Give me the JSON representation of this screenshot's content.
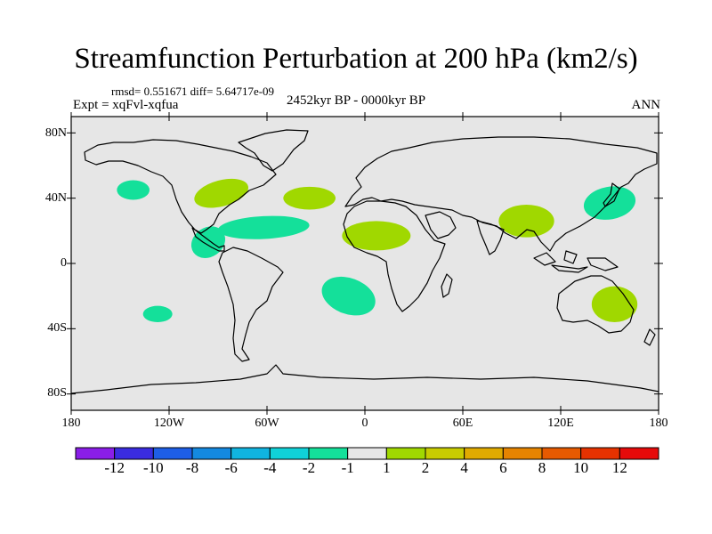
{
  "figure": {
    "title": "Streamfunction Perturbation at 200 hPa (km2/s)",
    "stats": "rmsd= 0.551671 diff= 5.64717e-09",
    "experiment": "Expt = xqFvl-xqfua",
    "period": "2452kyr BP - 0000kyr BP",
    "season": "ANN"
  },
  "map": {
    "projection": "cylindrical-equidistant",
    "lon_range": [
      -180,
      180
    ],
    "lat_range": [
      -90,
      90
    ],
    "lat_labels": [
      "80N",
      "40N",
      "0",
      "40S",
      "80S"
    ],
    "lat_values": [
      80,
      40,
      0,
      -40,
      -80
    ],
    "lon_labels": [
      "180",
      "120W",
      "60W",
      "0",
      "60E",
      "120E",
      "180"
    ],
    "lon_values": [
      -180,
      -120,
      -60,
      0,
      60,
      120,
      180
    ],
    "background_color": "#e6e6e6",
    "features": [
      {
        "name": "cyclone-north-pacific",
        "sign": "negative",
        "level": "-2 to -1",
        "color": "#14e09a",
        "center": [
          -142,
          45
        ],
        "radius": [
          10,
          6
        ],
        "rotation": 0
      },
      {
        "name": "anticyclone-north-america",
        "sign": "positive",
        "level": "1 to 2",
        "color": "#a0d800",
        "center": [
          -88,
          43
        ],
        "radius": [
          17,
          8
        ],
        "rotation": -15
      },
      {
        "name": "anticyclone-north-atlantic",
        "sign": "positive",
        "level": "1 to 2",
        "color": "#a0d800",
        "center": [
          -34,
          40
        ],
        "radius": [
          16,
          7
        ],
        "rotation": 0
      },
      {
        "name": "cyclone-tropical-atlantic",
        "sign": "negative",
        "level": "-2 to -1",
        "color": "#14e09a",
        "center": [
          -62,
          22
        ],
        "radius": [
          28,
          7
        ],
        "rotation": -3
      },
      {
        "name": "cyclone-eastern-pacific",
        "sign": "negative",
        "level": "-2 to -1",
        "color": "#14e09a",
        "center": [
          -96,
          13
        ],
        "radius": [
          11,
          9
        ],
        "rotation": -35
      },
      {
        "name": "anticyclone-north-africa",
        "sign": "positive",
        "level": "1 to 2",
        "color": "#a0d800",
        "center": [
          7,
          17
        ],
        "radius": [
          21,
          9
        ],
        "rotation": 0
      },
      {
        "name": "anticyclone-asia",
        "sign": "positive",
        "level": "1 to 2",
        "color": "#a0d800",
        "center": [
          99,
          26
        ],
        "radius": [
          17,
          10
        ],
        "rotation": 0
      },
      {
        "name": "cyclone-western-pacific",
        "sign": "negative",
        "level": "-2 to -1",
        "color": "#14e09a",
        "center": [
          150,
          37
        ],
        "radius": [
          16,
          10
        ],
        "rotation": -10
      },
      {
        "name": "cyclone-south-atlantic",
        "sign": "negative",
        "level": "-2 to -1",
        "color": "#14e09a",
        "center": [
          -10,
          -20
        ],
        "radius": [
          17,
          11
        ],
        "rotation": 20
      },
      {
        "name": "anticyclone-australia",
        "sign": "positive",
        "level": "1 to 2",
        "color": "#a0d800",
        "center": [
          153,
          -25
        ],
        "radius": [
          14,
          11
        ],
        "rotation": 0
      },
      {
        "name": "cyclone-south-pacific",
        "sign": "negative",
        "level": "-2 to -1",
        "color": "#14e09a",
        "center": [
          -127,
          -31
        ],
        "radius": [
          9,
          5
        ],
        "rotation": 0
      }
    ]
  },
  "colorbar": {
    "labels": [
      "-12",
      "-10",
      "-8",
      "-6",
      "-4",
      "-2",
      "-1",
      "1",
      "2",
      "4",
      "6",
      "8",
      "10",
      "12"
    ],
    "colors": [
      "#8a1ee8",
      "#3a2ce0",
      "#1e5ee6",
      "#1489e0",
      "#10b4e0",
      "#10d2d8",
      "#14e09a",
      "#e6e6e6",
      "#a0d800",
      "#c8cc00",
      "#e0aa00",
      "#e68400",
      "#e65a00",
      "#e63200",
      "#e60a0a"
    ]
  }
}
